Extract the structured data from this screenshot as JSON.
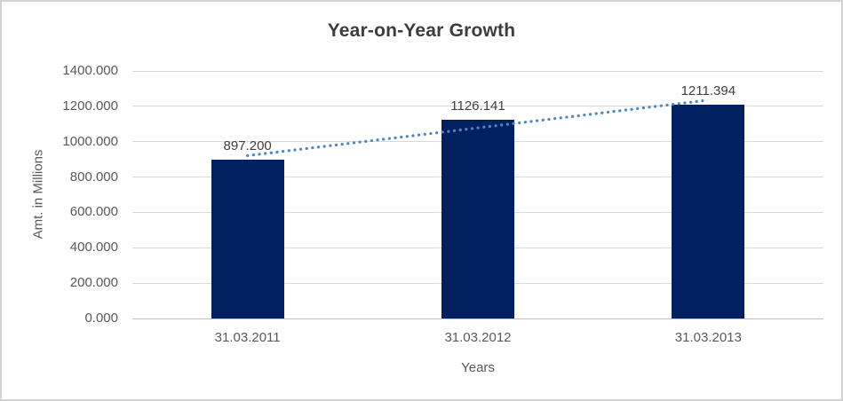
{
  "chart_data": {
    "type": "bar",
    "title": "Year-on-Year Growth",
    "categories": [
      "31.03.2011",
      "31.03.2012",
      "31.03.2013"
    ],
    "values": [
      897.2,
      1126.141,
      1211.394
    ],
    "data_labels": [
      "897.200",
      "1126.141",
      "1211.394"
    ],
    "xlabel": "Years",
    "ylabel": "Amt. in Millions",
    "ylim": [
      0,
      1400
    ],
    "ytick_step": 200,
    "ytick_labels": [
      "0.000",
      "200.000",
      "400.000",
      "600.000",
      "800.000",
      "1000.000",
      "1200.000",
      "1400.000"
    ],
    "grid": true,
    "legend_position": "none",
    "trendline": {
      "type": "linear",
      "style": "dotted"
    },
    "colors": {
      "bar": "#002060",
      "trendline": "#4f86c6",
      "gridline": "#d9d9d9",
      "axis_line": "#bfbfbf",
      "tick_text": "#595959",
      "label_text": "#404040",
      "title_text": "#3d3d3d"
    }
  }
}
